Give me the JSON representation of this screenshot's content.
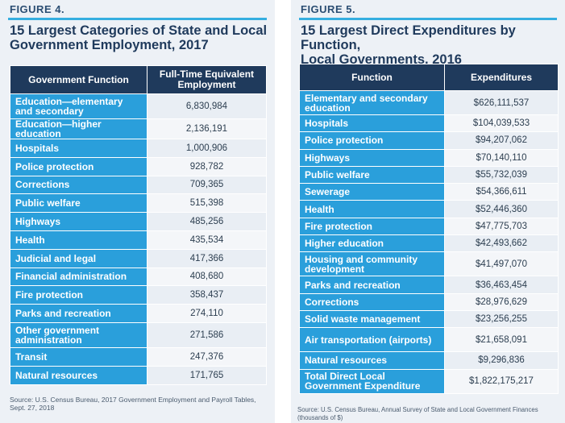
{
  "figure4": {
    "label": "FIGURE 4.",
    "title_line1": "15 Largest Categories of State and Local",
    "title_line2": "Government Employment, 2017",
    "header_function": "Government Function",
    "header_value": "Full-Time Equivalent Employment",
    "rows": [
      {
        "function": "Education—elementary and secondary",
        "value": "6,830,984"
      },
      {
        "function": "Education—higher education",
        "value": "2,136,191"
      },
      {
        "function": "Hospitals",
        "value": "1,000,906"
      },
      {
        "function": "Police protection",
        "value": "928,782"
      },
      {
        "function": "Corrections",
        "value": "709,365"
      },
      {
        "function": "Public welfare",
        "value": "515,398"
      },
      {
        "function": "Highways",
        "value": "485,256"
      },
      {
        "function": "Health",
        "value": "435,534"
      },
      {
        "function": "Judicial and legal",
        "value": "417,366"
      },
      {
        "function": "Financial administration",
        "value": "408,680"
      },
      {
        "function": "Fire protection",
        "value": "358,437"
      },
      {
        "function": "Parks and recreation",
        "value": "274,110"
      },
      {
        "function": "Other government administration",
        "value": "271,586"
      },
      {
        "function": "Transit",
        "value": "247,376"
      },
      {
        "function": "Natural resources",
        "value": "171,765"
      }
    ],
    "source": "Source: U.S. Census Bureau, 2017 Government Employment and Payroll Tables, Sept. 27, 2018"
  },
  "figure5": {
    "label": "FIGURE 5.",
    "title_line1": "15 Largest Direct Expenditures by Function,",
    "title_line2": "Local Governments, 2016",
    "header_function": "Function",
    "header_value": "Expenditures",
    "rows": [
      {
        "function": "Elementary and secondary education",
        "value": "$626,111,537"
      },
      {
        "function": "Hospitals",
        "value": "$104,039,533"
      },
      {
        "function": "Police protection",
        "value": "$94,207,062"
      },
      {
        "function": "Highways",
        "value": "$70,140,110"
      },
      {
        "function": "Public welfare",
        "value": "$55,732,039"
      },
      {
        "function": "Sewerage",
        "value": "$54,366,611"
      },
      {
        "function": "Health",
        "value": "$52,446,360"
      },
      {
        "function": "Fire protection",
        "value": "$47,775,703"
      },
      {
        "function": "Higher education",
        "value": "$42,493,662"
      },
      {
        "function": "Housing and community development",
        "value": "$41,497,070"
      },
      {
        "function": "Parks and recreation",
        "value": "$36,463,454"
      },
      {
        "function": "Corrections",
        "value": "$28,976,629"
      },
      {
        "function": "Solid waste management",
        "value": "$23,256,255"
      },
      {
        "function": "Air transportation (airports)",
        "value": "$21,658,091"
      },
      {
        "function": "Natural resources",
        "value": "$9,296,836"
      },
      {
        "function": "Total Direct Local Government Expenditure",
        "value": "$1,822,175,217"
      }
    ],
    "source": "Source: U.S. Census Bureau, Annual Survey of State and Local Government Finances (thousands of $)"
  }
}
